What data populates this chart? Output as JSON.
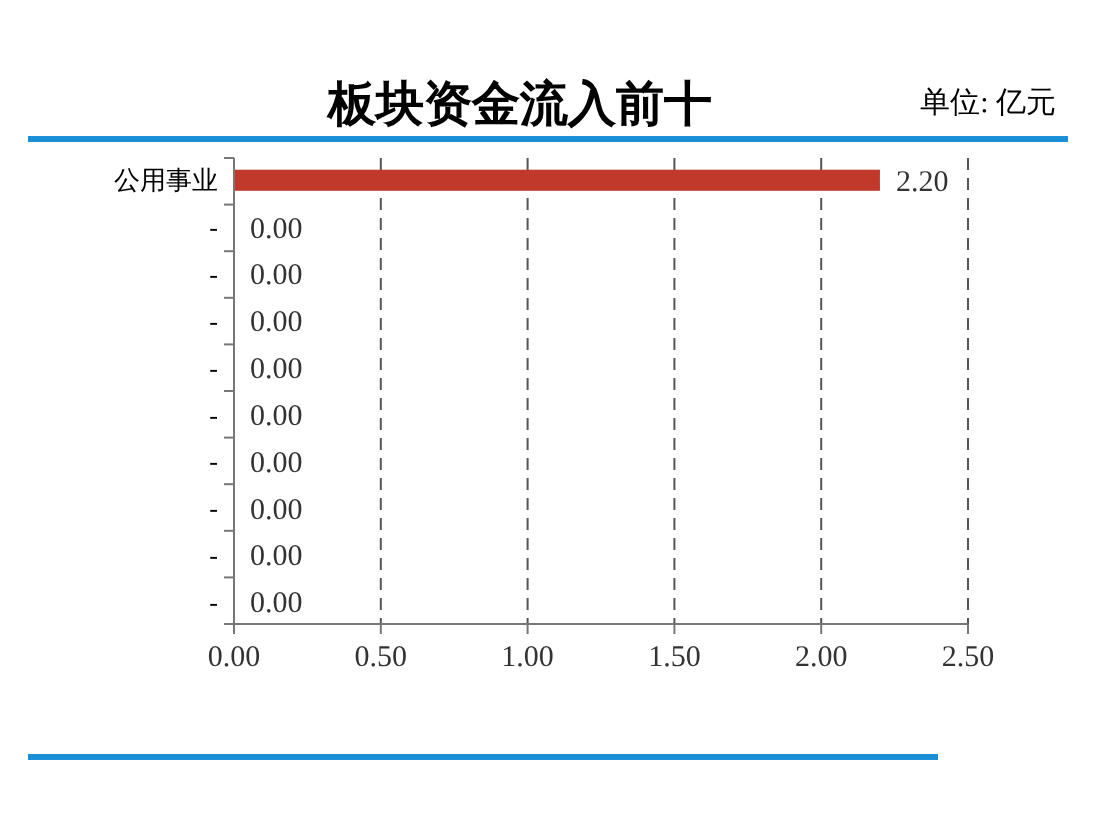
{
  "chart_data": {
    "type": "bar",
    "orientation": "horizontal",
    "title": "板块资金流入前十",
    "annotations": [
      "单位: 亿元"
    ],
    "categories": [
      "公用事业",
      "-",
      "-",
      "-",
      "-",
      "-",
      "-",
      "-",
      "-",
      "-"
    ],
    "values": [
      2.2,
      0,
      0,
      0,
      0,
      0,
      0,
      0,
      0,
      0
    ],
    "value_labels": [
      "2.20",
      "0.00",
      "0.00",
      "0.00",
      "0.00",
      "0.00",
      "0.00",
      "0.00",
      "0.00",
      "0.00"
    ],
    "color": "#c0392b",
    "xlim": [
      0,
      2.5
    ],
    "xticks": [
      {
        "value": 0,
        "label": "0.00"
      },
      {
        "value": 0.5,
        "label": "0.50"
      },
      {
        "value": 1,
        "label": "1.00"
      },
      {
        "value": 1.5,
        "label": "1.50"
      },
      {
        "value": 2,
        "label": "2.00"
      },
      {
        "value": 2.5,
        "label": "2.50"
      }
    ],
    "grid": "x"
  }
}
